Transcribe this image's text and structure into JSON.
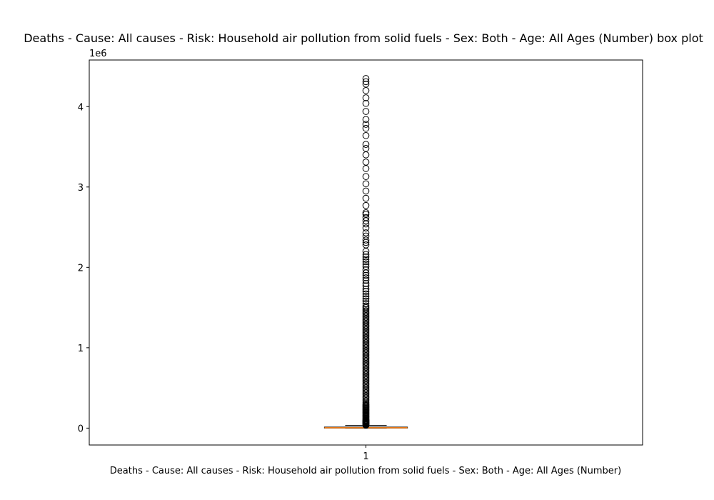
{
  "chart_data": {
    "type": "box",
    "title": "Deaths - Cause: All causes - Risk: Household air pollution from solid fuels - Sex: Both - Age: All Ages (Number) box plot",
    "xlabel": "Deaths - Cause: All causes - Risk: Household air pollution from solid fuels - Sex: Both - Age: All Ages (Number)",
    "ylabel": "",
    "categories": [
      "1"
    ],
    "offset_text": "1e6",
    "y_scale_factor": 1000000,
    "ylim": [
      -0.21,
      4.58
    ],
    "yticks": [
      0,
      1,
      2,
      3,
      4
    ],
    "xlim": [
      0.5,
      1.5
    ],
    "grid": false,
    "colors": {
      "box": "#000000",
      "median": "#ff7f0e",
      "flier": "#000000",
      "background": "#ffffff"
    },
    "box": {
      "whisker_low": 0,
      "q1": 0.001,
      "median": 0.004,
      "q3": 0.013,
      "whisker_high": 0.033
    },
    "outliers": [
      4.35,
      4.31,
      4.28,
      4.2,
      4.11,
      4.04,
      3.94,
      3.84,
      3.78,
      3.73,
      3.64,
      3.53,
      3.48,
      3.4,
      3.31,
      3.23,
      3.13,
      3.04,
      2.95,
      2.86,
      2.77,
      2.68,
      2.66,
      2.62,
      2.58,
      2.54,
      2.49,
      2.43,
      2.39,
      2.34,
      2.31,
      2.28,
      2.2,
      2.16,
      2.13,
      2.1,
      2.07,
      2.04,
      2.01,
      1.97,
      1.93,
      1.9,
      1.87,
      1.84,
      1.8,
      1.77,
      1.73,
      1.7,
      1.67,
      1.64,
      1.61,
      1.58,
      1.55,
      1.52,
      1.5,
      1.48,
      1.46,
      1.44,
      1.42,
      1.4,
      1.38,
      1.36,
      1.34,
      1.32,
      1.3,
      1.28,
      1.26,
      1.24,
      1.22,
      1.2,
      1.18,
      1.16,
      1.14,
      1.12,
      1.1,
      1.08,
      1.06,
      1.04,
      1.02,
      1.0,
      0.98,
      0.96,
      0.94,
      0.92,
      0.9,
      0.88,
      0.86,
      0.84,
      0.82,
      0.8,
      0.78,
      0.76,
      0.74,
      0.72,
      0.7,
      0.68,
      0.66,
      0.64,
      0.62,
      0.6,
      0.58,
      0.56,
      0.54,
      0.52,
      0.5,
      0.48,
      0.46,
      0.44,
      0.42,
      0.4,
      0.38,
      0.36,
      0.34,
      0.32,
      0.3,
      0.29,
      0.28,
      0.27,
      0.26,
      0.25,
      0.24,
      0.23,
      0.22,
      0.21,
      0.2,
      0.19,
      0.18,
      0.17,
      0.16,
      0.15,
      0.14,
      0.13,
      0.12,
      0.11,
      0.1,
      0.095,
      0.09,
      0.085,
      0.08,
      0.075,
      0.07,
      0.065,
      0.06,
      0.055,
      0.05,
      0.045,
      0.04,
      0.036
    ]
  }
}
